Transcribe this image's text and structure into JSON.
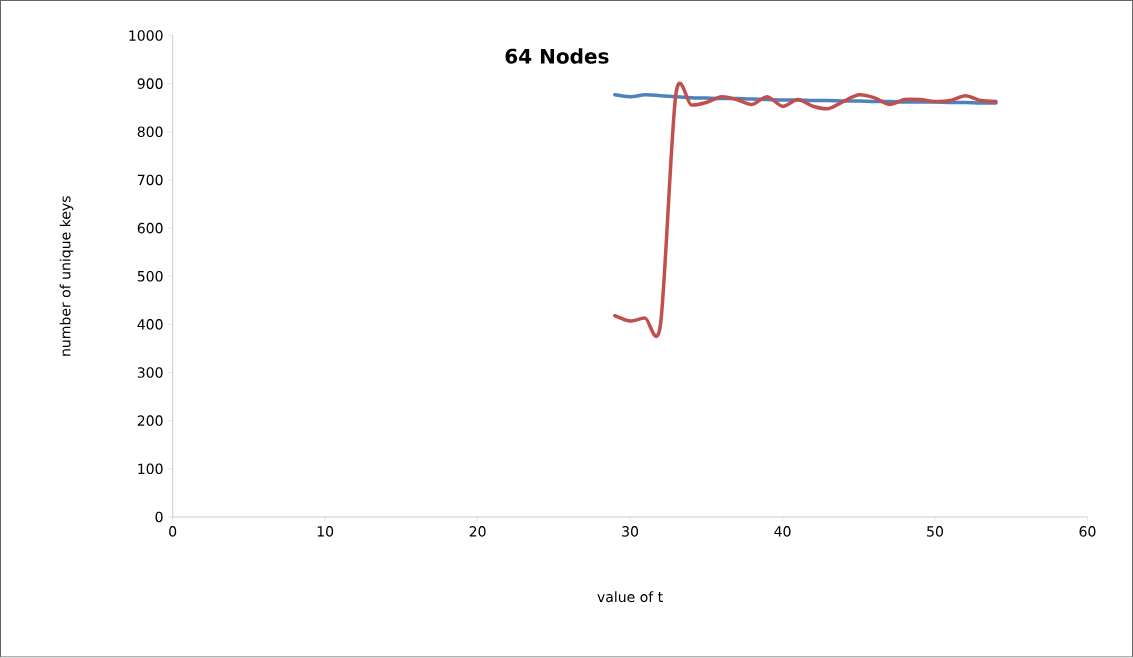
{
  "chart_data": {
    "type": "line",
    "title": "64 Nodes",
    "xlabel": "value of t",
    "ylabel": "number of unique keys",
    "x": [
      29,
      30,
      31,
      32,
      33,
      34,
      35,
      36,
      37,
      38,
      39,
      40,
      41,
      42,
      43,
      44,
      45,
      46,
      47,
      48,
      49,
      50,
      51,
      52,
      53,
      54
    ],
    "series": [
      {
        "color": "#4f81bd",
        "values": [
          877,
          873,
          877,
          875,
          873,
          871,
          870,
          869,
          869,
          868,
          867,
          866,
          866,
          865,
          865,
          864,
          864,
          863,
          863,
          862,
          862,
          862,
          861,
          861,
          860,
          860
        ]
      },
      {
        "color": "#c0504d",
        "values": [
          418,
          407,
          413,
          401,
          877,
          856,
          861,
          873,
          867,
          857,
          873,
          853,
          867,
          853,
          848,
          863,
          877,
          871,
          857,
          867,
          867,
          863,
          865,
          875,
          865,
          863
        ]
      }
    ],
    "xlim": [
      0,
      60
    ],
    "xticks": [
      0,
      10,
      20,
      30,
      40,
      50,
      60
    ],
    "ylim": [
      0,
      1000
    ],
    "yticks": [
      0,
      100,
      200,
      300,
      400,
      500,
      600,
      700,
      800,
      900,
      1000
    ],
    "grid": false,
    "marker": "none",
    "line_style": "solid"
  }
}
